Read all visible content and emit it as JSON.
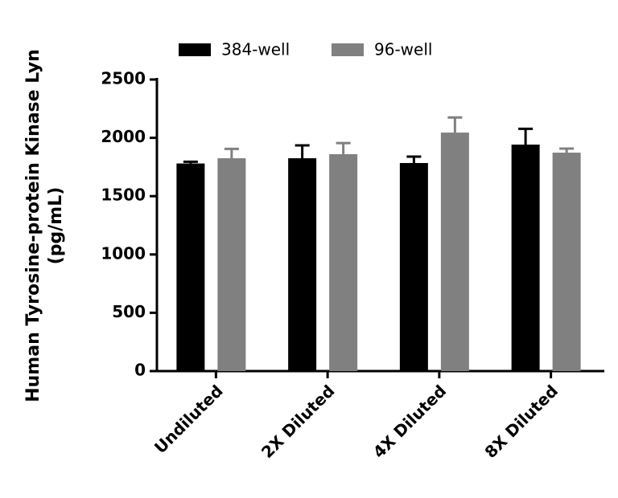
{
  "chart_data": {
    "type": "bar",
    "ylabel": [
      "Human Tyrosine-protein Kinase Lyn",
      "(pg/mL)"
    ],
    "categories": [
      "Undiluted",
      "2X Diluted",
      "4X Diluted",
      "8X Diluted"
    ],
    "series": [
      {
        "name": "384-well",
        "color": "#000000",
        "values": [
          1780,
          1825,
          1784,
          1942
        ],
        "errors": [
          15,
          110,
          55,
          135
        ]
      },
      {
        "name": "96-well",
        "color": "#808080",
        "values": [
          1825,
          1860,
          2045,
          1873
        ],
        "errors": [
          80,
          95,
          130,
          35
        ]
      }
    ],
    "ylim": [
      0,
      2500
    ],
    "yticks": [
      0,
      500,
      1000,
      1500,
      2000,
      2500
    ],
    "grid": false,
    "legend": "top"
  }
}
